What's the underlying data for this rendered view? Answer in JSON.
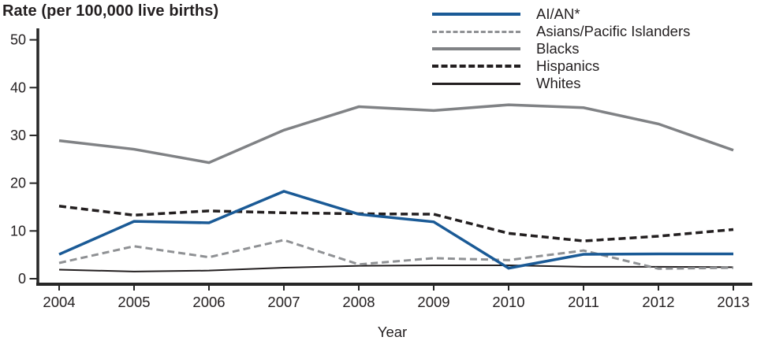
{
  "page": {
    "background": "#ffffff",
    "text_color": "#231f20",
    "axis_color": "#262626"
  },
  "chart_data": {
    "type": "line",
    "title": "Rate (per 100,000 live births)",
    "xlabel": "Year",
    "ylabel": "Rate (per 100,000 live births)",
    "x": [
      2004,
      2005,
      2006,
      2007,
      2008,
      2009,
      2010,
      2011,
      2012,
      2013
    ],
    "ylim": [
      0,
      50
    ],
    "yticks": [
      0,
      10,
      20,
      30,
      40,
      50
    ],
    "grid": false,
    "legend_position": "top-center",
    "series": [
      {
        "name": "AI/AN*",
        "color": "#1a5a96",
        "dash": false,
        "stroke_width": 3.5,
        "values": [
          5.1,
          12.0,
          11.7,
          18.3,
          13.5,
          11.9,
          2.2,
          5.1,
          5.2,
          5.2
        ]
      },
      {
        "name": "Asians/Pacific Islanders",
        "color": "#8f9194",
        "dash": true,
        "stroke_width": 3,
        "values": [
          3.3,
          6.8,
          4.5,
          8.1,
          3.0,
          4.3,
          3.9,
          5.9,
          2.1,
          2.3
        ]
      },
      {
        "name": "Blacks",
        "color": "#808285",
        "dash": false,
        "stroke_width": 3.5,
        "values": [
          28.9,
          27.1,
          24.3,
          31.1,
          36.0,
          35.2,
          36.4,
          35.8,
          32.4,
          26.9
        ]
      },
      {
        "name": "Hispanics",
        "color": "#231f20",
        "dash": true,
        "stroke_width": 3.5,
        "values": [
          15.2,
          13.3,
          14.2,
          13.8,
          13.6,
          13.5,
          9.5,
          7.9,
          8.9,
          10.3
        ]
      },
      {
        "name": "Whites",
        "color": "#231f20",
        "dash": false,
        "stroke_width": 2,
        "values": [
          1.9,
          1.5,
          1.7,
          2.3,
          2.7,
          2.8,
          2.8,
          2.5,
          2.5,
          2.4
        ]
      }
    ]
  }
}
